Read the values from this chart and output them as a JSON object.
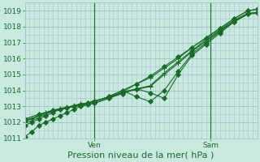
{
  "title": "",
  "xlabel": "Pression niveau de la mer( hPa )",
  "bg_color": "#c8e8e0",
  "grid_color": "#a0c8c0",
  "line_color": "#1a6b2a",
  "ylim": [
    1011,
    1019.5
  ],
  "xlim": [
    0,
    100
  ],
  "ven_x": 30,
  "sam_x": 80,
  "xlabel_fontsize": 8,
  "tick_fontsize": 6.5,
  "lines": [
    {
      "x": [
        0,
        3,
        6,
        9,
        12,
        15,
        18,
        21,
        24,
        27,
        30,
        36,
        42,
        48,
        54,
        60,
        66,
        72,
        78,
        84,
        90,
        96,
        100
      ],
      "y": [
        1011.1,
        1011.4,
        1011.8,
        1012.0,
        1012.2,
        1012.4,
        1012.6,
        1012.8,
        1013.0,
        1013.1,
        1013.2,
        1013.5,
        1013.9,
        1014.4,
        1014.9,
        1015.5,
        1016.1,
        1016.7,
        1017.3,
        1017.9,
        1018.5,
        1019.0,
        1019.1
      ],
      "marker": "D"
    },
    {
      "x": [
        0,
        3,
        6,
        9,
        12,
        15,
        18,
        21,
        24,
        27,
        30,
        36,
        42,
        48,
        54,
        60,
        66,
        72,
        78,
        84,
        90,
        96,
        100
      ],
      "y": [
        1011.8,
        1012.0,
        1012.2,
        1012.4,
        1012.6,
        1012.8,
        1012.9,
        1013.0,
        1013.1,
        1013.2,
        1013.3,
        1013.6,
        1014.0,
        1013.6,
        1013.3,
        1014.0,
        1015.2,
        1016.3,
        1017.0,
        1017.7,
        1018.3,
        1018.8,
        1018.9
      ],
      "marker": "D"
    },
    {
      "x": [
        0,
        3,
        6,
        9,
        12,
        15,
        18,
        21,
        24,
        27,
        30,
        36,
        42,
        48,
        54,
        60,
        66,
        72,
        78,
        84,
        90,
        96,
        100
      ],
      "y": [
        1012.0,
        1012.1,
        1012.3,
        1012.5,
        1012.7,
        1012.8,
        1012.9,
        1013.0,
        1013.1,
        1013.2,
        1013.3,
        1013.6,
        1014.0,
        1014.4,
        1014.8,
        1015.4,
        1016.0,
        1016.7,
        1017.3,
        1017.9,
        1018.5,
        1019.0,
        1019.1
      ],
      "marker": "+"
    },
    {
      "x": [
        0,
        3,
        6,
        9,
        12,
        15,
        18,
        21,
        24,
        27,
        30,
        36,
        42,
        48,
        54,
        60,
        66,
        72,
        78,
        84,
        90,
        96,
        100
      ],
      "y": [
        1012.1,
        1012.2,
        1012.4,
        1012.6,
        1012.7,
        1012.8,
        1012.9,
        1013.0,
        1013.15,
        1013.2,
        1013.35,
        1013.55,
        1013.9,
        1014.1,
        1014.3,
        1015.1,
        1015.8,
        1016.5,
        1017.2,
        1017.8,
        1018.4,
        1018.85,
        1018.9
      ],
      "marker": "+"
    },
    {
      "x": [
        0,
        3,
        6,
        9,
        12,
        15,
        18,
        21,
        24,
        27,
        30,
        36,
        42,
        48,
        54,
        60,
        66,
        72,
        78,
        84,
        90,
        96,
        100
      ],
      "y": [
        1012.15,
        1012.25,
        1012.45,
        1012.6,
        1012.75,
        1012.85,
        1012.95,
        1013.05,
        1013.15,
        1013.2,
        1013.35,
        1013.55,
        1013.85,
        1014.05,
        1014.25,
        1015.0,
        1015.7,
        1016.45,
        1017.1,
        1017.75,
        1018.35,
        1018.8,
        1018.85
      ],
      "marker": "+"
    },
    {
      "x": [
        0,
        6,
        12,
        18,
        24,
        30,
        36,
        42,
        48,
        54,
        60,
        66,
        72,
        78,
        84,
        90,
        96,
        100
      ],
      "y": [
        1012.2,
        1012.5,
        1012.75,
        1012.9,
        1013.05,
        1013.2,
        1013.5,
        1013.8,
        1014.1,
        1013.85,
        1013.5,
        1015.0,
        1016.2,
        1016.9,
        1017.6,
        1018.3,
        1018.8,
        1018.85
      ],
      "marker": "D"
    }
  ]
}
